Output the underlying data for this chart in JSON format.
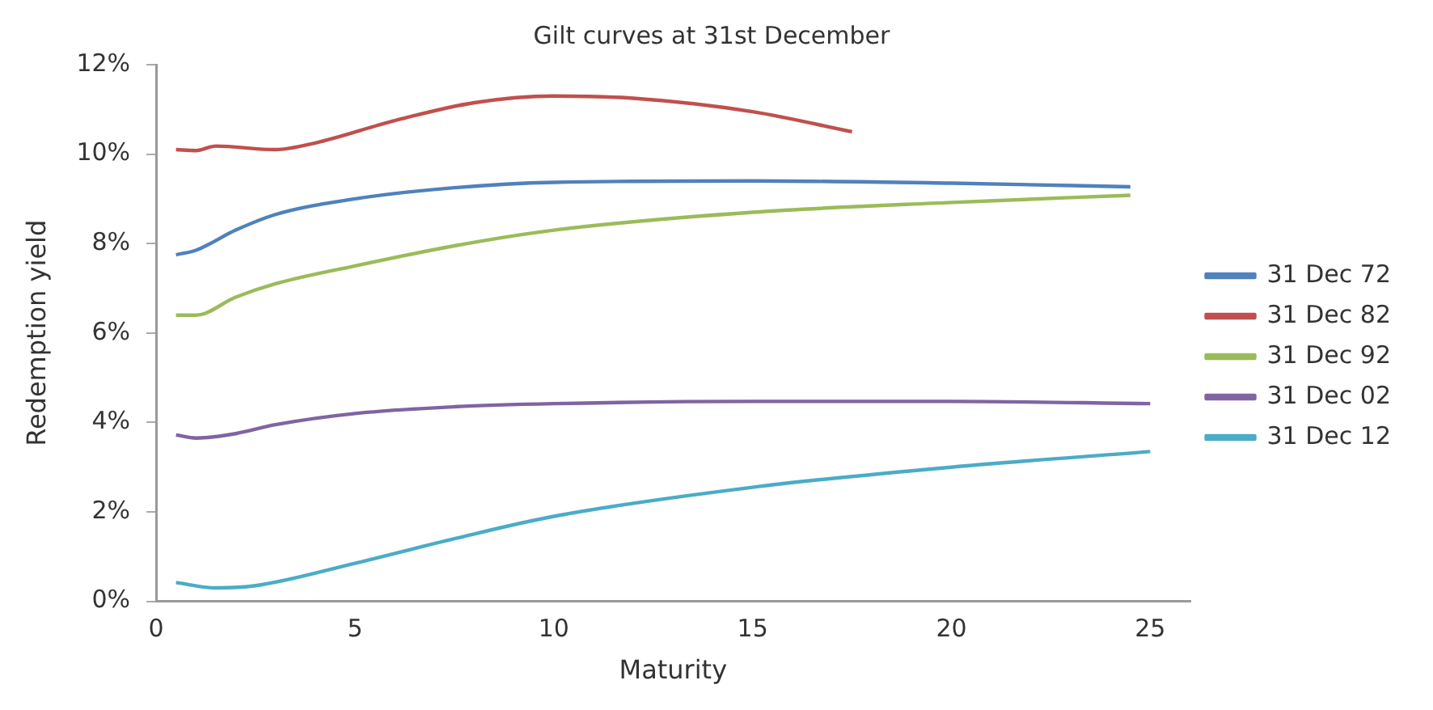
{
  "chart_data": {
    "type": "line",
    "title": "Gilt curves at 31st December",
    "xlabel": "Maturity",
    "ylabel": "Redemption yield",
    "xlim": [
      0,
      26
    ],
    "xticks": [
      0,
      5,
      10,
      15,
      20,
      25
    ],
    "ylim": [
      0,
      12
    ],
    "yticks": [
      {
        "value": 0,
        "label": "0%"
      },
      {
        "value": 2,
        "label": "2%"
      },
      {
        "value": 4,
        "label": "4%"
      },
      {
        "value": 6,
        "label": "6%"
      },
      {
        "value": 8,
        "label": "8%"
      },
      {
        "value": 10,
        "label": "10%"
      },
      {
        "value": 12,
        "label": "12%"
      }
    ],
    "grid": false,
    "legend": "right",
    "marker": "none",
    "line_style": "solid",
    "series": [
      {
        "name": "31 Dec 72",
        "color": "#4f81bd",
        "x": [
          0.5,
          1,
          2,
          3,
          5,
          7.5,
          10,
          15,
          20,
          24.5
        ],
        "values": [
          7.75,
          7.85,
          8.3,
          8.65,
          9.0,
          9.25,
          9.37,
          9.4,
          9.35,
          9.27
        ]
      },
      {
        "name": "31 Dec 82",
        "color": "#c0504d",
        "x": [
          0.5,
          1,
          1.5,
          3,
          4,
          6,
          8,
          10,
          12,
          15,
          17.5
        ],
        "values": [
          10.1,
          10.08,
          10.18,
          10.1,
          10.25,
          10.75,
          11.15,
          11.3,
          11.25,
          10.95,
          10.5
        ]
      },
      {
        "name": "31 Dec 92",
        "color": "#9bbb59",
        "x": [
          0.5,
          1,
          2,
          3,
          5,
          7.5,
          10,
          15,
          20,
          24.5
        ],
        "values": [
          6.4,
          6.4,
          6.8,
          7.1,
          7.5,
          7.95,
          8.3,
          8.7,
          8.92,
          9.08
        ]
      },
      {
        "name": "31 Dec 02",
        "color": "#8064a2",
        "x": [
          0.5,
          1,
          2,
          3,
          5,
          7.5,
          10,
          15,
          20,
          25
        ],
        "values": [
          3.72,
          3.65,
          3.75,
          3.95,
          4.2,
          4.35,
          4.42,
          4.47,
          4.47,
          4.42
        ]
      },
      {
        "name": "31 Dec 12",
        "color": "#4bacc6",
        "x": [
          0.5,
          1.5,
          2.5,
          5,
          7.5,
          10,
          15,
          20,
          25
        ],
        "values": [
          0.42,
          0.3,
          0.35,
          0.85,
          1.4,
          1.9,
          2.55,
          3.0,
          3.35
        ]
      }
    ]
  }
}
